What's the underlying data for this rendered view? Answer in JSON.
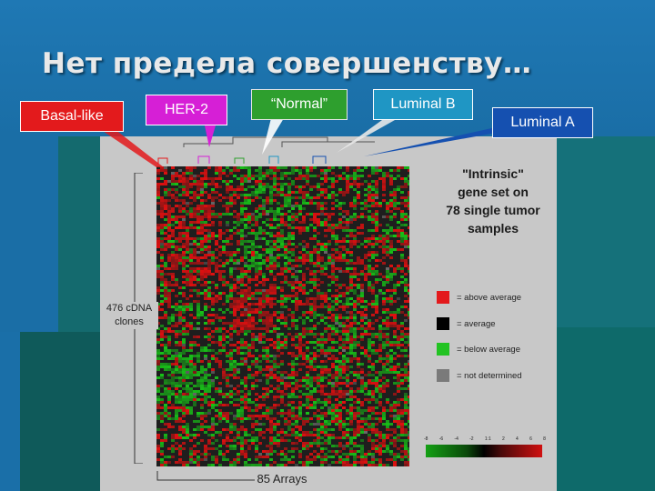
{
  "slide": {
    "title": "Нет предела совершенству…"
  },
  "subtypes": [
    {
      "label": "Basal-like",
      "color": "#e31a1c"
    },
    {
      "label": "HER-2",
      "color": "#d61fd6"
    },
    {
      "label": "“Normal”",
      "color": "#2e9f2e"
    },
    {
      "label": "Luminal B",
      "color": "#1f96c4"
    },
    {
      "label": "Luminal A",
      "color": "#1550b0"
    }
  ],
  "figure": {
    "description_lines": [
      "\"Intrinsic\"",
      "gene set on",
      "78 single tumor",
      "samples"
    ],
    "rows_label_lines": [
      "476 cDNA",
      "clones"
    ],
    "cols_label": "85 Arrays",
    "legend": [
      {
        "color": "#e31a1c",
        "text": "= above average"
      },
      {
        "color": "#000000",
        "text": "= average"
      },
      {
        "color": "#22c322",
        "text": "= below average"
      },
      {
        "color": "#7a7a7a",
        "text": "= not determined"
      }
    ],
    "scale_ticks": [
      "-8",
      "-6",
      "-4",
      "-2",
      "1:1",
      "2",
      "4",
      "6",
      "8"
    ],
    "heatmap_colors": {
      "red": "#e01010",
      "green": "#18c018",
      "black": "#101010",
      "gray": "#6a6a6a"
    }
  }
}
